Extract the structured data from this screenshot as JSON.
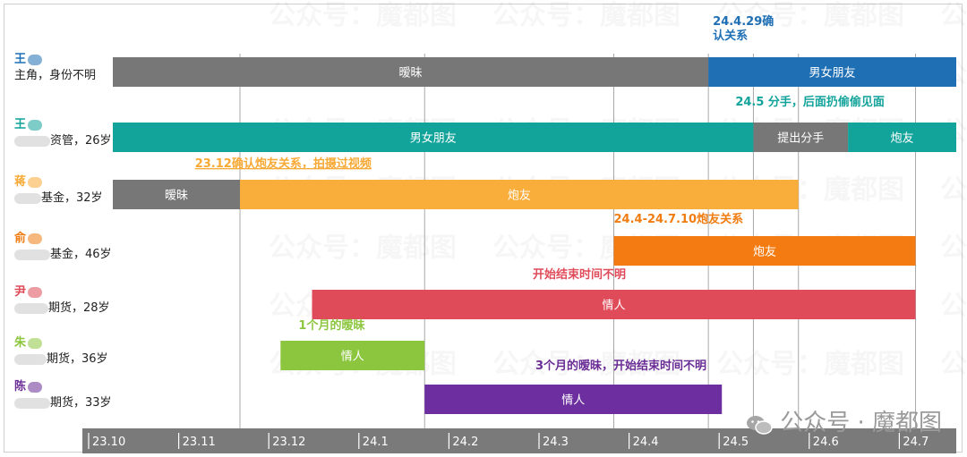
{
  "chart_data": {
    "type": "bar",
    "subtype": "timeline-gantt",
    "x_ticks": [
      "23.10",
      "23.11",
      "23.12",
      "24.1",
      "24.2",
      "24.3",
      "24.4",
      "24.5",
      "24.6",
      "24.7"
    ],
    "rows": [
      {
        "surname": "王",
        "desc": "主角，身份不明",
        "surname_color": "#1f6fb5",
        "segments": [
          {
            "label": "暧昧",
            "start": 0.0,
            "end": 6.9,
            "color": "#777777"
          },
          {
            "label": "男女朋友",
            "start": 6.9,
            "end": 9.85,
            "color": "#1f6fb5"
          }
        ],
        "annotation": {
          "text": "24.4.29确\n认关系",
          "at": 6.95,
          "color": "#1f6fb5"
        }
      },
      {
        "surname": "王",
        "desc": "资管，26岁",
        "surname_color": "#12a39a",
        "segments": [
          {
            "label": "男女朋友",
            "start": -0.3,
            "end": 7.4,
            "color": "#12a39a"
          },
          {
            "label": "提出分手",
            "start": 7.4,
            "end": 8.45,
            "color": "#777777"
          },
          {
            "label": "炮友",
            "start": 8.45,
            "end": 9.8,
            "color": "#12a39a"
          }
        ],
        "annotation": {
          "text": "24.5 分手，后面扔偷偷见面",
          "at": 7.2,
          "color": "#12a39a"
        }
      },
      {
        "surname": "蒋",
        "desc": "基金，32岁",
        "surname_color": "#f7a935",
        "segments": [
          {
            "label": "暧昧",
            "start": -0.3,
            "end": 1.7,
            "color": "#777777"
          },
          {
            "label": "炮友",
            "start": 1.7,
            "end": 7.9,
            "color": "#f9ad3a"
          }
        ],
        "annotation": {
          "text": "23.12确认炮友关系，拍摄过视频",
          "at": 1.2,
          "color": "#f7a935",
          "underline": true
        }
      },
      {
        "surname": "俞",
        "desc": "基金，46岁",
        "surname_color": "#f07d12",
        "segments": [
          {
            "label": "炮友",
            "start": 5.85,
            "end": 9.2,
            "color": "#f47b12"
          }
        ],
        "annotation": {
          "text": "24.4-24.7.10炮友关系",
          "at": 5.85,
          "color": "#f07d12"
        }
      },
      {
        "surname": "尹",
        "desc": "期货，28岁",
        "surname_color": "#e04b5a",
        "segments": [
          {
            "label": "情人",
            "start": 2.5,
            "end": 9.2,
            "color": "#e04b5a"
          }
        ],
        "annotation": {
          "text": "开始结束时间不明",
          "at": 4.95,
          "color": "#e04b5a"
        }
      },
      {
        "surname": "朱",
        "desc": "期货，36岁",
        "surname_color": "#8cc63f",
        "segments": [
          {
            "label": "情人",
            "start": 2.15,
            "end": 3.75,
            "color": "#8cc63f"
          }
        ],
        "annotation": {
          "text": "1个月的暧昧",
          "at": 2.35,
          "color": "#8cc63f"
        }
      },
      {
        "surname": "陈",
        "desc": "期货，33岁",
        "surname_color": "#6a2c95",
        "segments": [
          {
            "label": "情人",
            "start": 3.75,
            "end": 7.05,
            "color": "#6d2ea0"
          }
        ],
        "annotation": {
          "text": "3个月的暧昧，开始结束时间不明",
          "at": 4.98,
          "color": "#6a2c95"
        }
      }
    ],
    "gridlines_at": [
      1.7,
      3.75,
      5.85,
      6.9,
      7.4,
      7.9,
      9.2
    ]
  },
  "watermark": {
    "text": "公众号：魔都图",
    "brand_text": "公众号 · 魔都图",
    "icon": "wechat-icon"
  },
  "colors": {
    "axis_bar": "#7a7a7a",
    "axis_text": "#ffffff",
    "gridline": "#a8a8a8"
  }
}
